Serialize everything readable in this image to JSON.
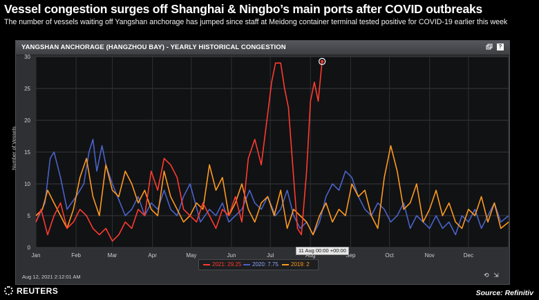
{
  "headline": "Vessel congestion surges off Shanghai & Ningbo’s main ports after COVID outbreaks",
  "subheadline": "The number of vessels waiting off Yangshan anchorage has jumped since staff at Meidong container terminal tested positive for COVID-19 earlier this week",
  "panel": {
    "title": "YANGSHAN ANCHORAGE (HANGZHOU BAY) - YEARLY HISTORICAL CONGESTION",
    "icon_restore": "restore-icon",
    "icon_help": "?"
  },
  "tooltip": "11 Aug 00:00 +00:00",
  "timestamp": "Aug 12, 2021 2:12:01 AM",
  "legend": [
    {
      "label": "2021: 29.25",
      "color": "#ff3b2f"
    },
    {
      "label": "2020: 7.75",
      "color": "#4a63c9"
    },
    {
      "label": "2019: 2",
      "color": "#ff9a1f"
    }
  ],
  "footer": {
    "brand": "REUTERS",
    "source": "Source: Refinitiv"
  },
  "chart_data": {
    "type": "line",
    "title": "YANGSHAN ANCHORAGE (HANGZHOU BAY) - YEARLY HISTORICAL CONGESTION",
    "xlabel": "",
    "ylabel": "Number of Vessels",
    "ylim": [
      0,
      30
    ],
    "yticks": [
      0,
      5,
      10,
      15,
      20,
      25,
      30
    ],
    "x_unit": "day of year",
    "xlim": [
      1,
      366
    ],
    "month_ticks": [
      {
        "label": "Jan",
        "day": 1
      },
      {
        "label": "Feb",
        "day": 32
      },
      {
        "label": "Mar",
        "day": 60
      },
      {
        "label": "Apr",
        "day": 91
      },
      {
        "label": "May",
        "day": 121
      },
      {
        "label": "Jun",
        "day": 152
      },
      {
        "label": "Jul",
        "day": 182
      },
      {
        "label": "Aug",
        "day": 213
      },
      {
        "label": "Sep",
        "day": 244
      },
      {
        "label": "Oct",
        "day": 274
      },
      {
        "label": "Nov",
        "day": 305
      },
      {
        "label": "Dec",
        "day": 335
      }
    ],
    "grid": true,
    "series": [
      {
        "name": "2020",
        "color": "#4a63c9",
        "x": [
          1,
          8,
          12,
          15,
          20,
          25,
          32,
          38,
          42,
          45,
          48,
          52,
          55,
          60,
          66,
          70,
          75,
          80,
          85,
          90,
          95,
          100,
          105,
          110,
          115,
          120,
          128,
          135,
          140,
          145,
          150,
          155,
          160,
          166,
          170,
          175,
          180,
          186,
          190,
          195,
          200,
          205,
          210,
          215,
          220,
          225,
          230,
          235,
          240,
          245,
          250,
          255,
          260,
          265,
          270,
          275,
          280,
          285,
          290,
          295,
          300,
          305,
          310,
          315,
          320,
          325,
          330,
          335,
          340,
          345,
          350,
          355,
          360,
          366
        ],
        "y": [
          4,
          7,
          14,
          15,
          11,
          6,
          8,
          10,
          15,
          17,
          12,
          16,
          13,
          10,
          7,
          5,
          6,
          8,
          5,
          7,
          6,
          9,
          6,
          5,
          8,
          10,
          4,
          6,
          5,
          7,
          4,
          5,
          6,
          9,
          7,
          6,
          8,
          5,
          6,
          9,
          5,
          3,
          4,
          2,
          4,
          8,
          10,
          9,
          12,
          11,
          8,
          6,
          5,
          7,
          6,
          4,
          5,
          7,
          3,
          5,
          4,
          3,
          5,
          3,
          4,
          2,
          5,
          4,
          6,
          3,
          5,
          7,
          4,
          5
        ]
      },
      {
        "name": "2019",
        "color": "#ff9a1f",
        "x": [
          1,
          6,
          10,
          15,
          20,
          25,
          30,
          35,
          40,
          45,
          50,
          55,
          60,
          65,
          70,
          75,
          80,
          85,
          90,
          95,
          100,
          105,
          110,
          115,
          120,
          125,
          130,
          135,
          140,
          145,
          150,
          155,
          160,
          165,
          170,
          175,
          180,
          185,
          190,
          195,
          200,
          205,
          210,
          215,
          220,
          225,
          230,
          235,
          240,
          245,
          250,
          255,
          260,
          265,
          270,
          275,
          280,
          285,
          290,
          295,
          300,
          305,
          310,
          315,
          320,
          325,
          330,
          335,
          340,
          345,
          350,
          355,
          360,
          366
        ],
        "y": [
          5,
          6,
          9,
          7,
          5,
          3,
          6,
          11,
          14,
          8,
          5,
          13,
          9,
          8,
          12,
          10,
          7,
          9,
          6,
          5,
          12,
          8,
          6,
          4,
          5,
          7,
          6,
          13,
          9,
          11,
          5,
          7,
          10,
          6,
          4,
          7,
          8,
          5,
          9,
          3,
          6,
          5,
          4,
          2,
          5,
          7,
          4,
          6,
          5,
          10,
          8,
          9,
          5,
          3,
          11,
          16,
          12,
          6,
          7,
          10,
          4,
          6,
          9,
          5,
          7,
          4,
          3,
          6,
          5,
          8,
          4,
          7,
          3,
          4
        ]
      },
      {
        "name": "2021",
        "color": "#ff3b2f",
        "x": [
          1,
          5,
          10,
          15,
          20,
          25,
          30,
          35,
          40,
          45,
          50,
          55,
          60,
          65,
          70,
          75,
          80,
          85,
          90,
          95,
          100,
          105,
          110,
          115,
          120,
          125,
          130,
          135,
          140,
          145,
          150,
          155,
          160,
          165,
          170,
          175,
          180,
          183,
          186,
          190,
          193,
          196,
          200,
          203,
          206,
          210,
          213,
          216,
          219,
          222
        ],
        "y": [
          4,
          6,
          2,
          5,
          7,
          3,
          4,
          6,
          5,
          3,
          2,
          3,
          1,
          2,
          4,
          3,
          6,
          5,
          12,
          9,
          14,
          13,
          11,
          6,
          5,
          4,
          7,
          5,
          3,
          6,
          5,
          8,
          4,
          14,
          17,
          13,
          21,
          26,
          29,
          29,
          25,
          22,
          11,
          3,
          2,
          12,
          23,
          26,
          23,
          29.25
        ]
      }
    ]
  }
}
